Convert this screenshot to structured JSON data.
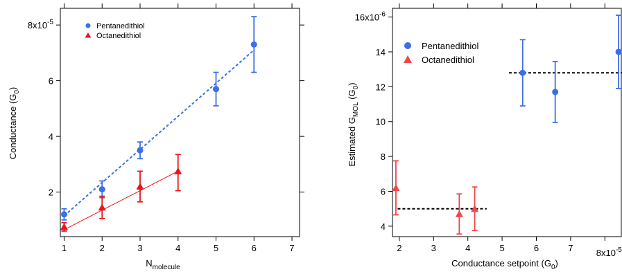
{
  "chart_data": [
    {
      "type": "scatter",
      "xlabel": "N",
      "xlabel_sub": "molecule",
      "ylabel": "Conductance (G",
      "ylabel_sub": "0",
      "ylabel_end": ")",
      "xlim": [
        0.9,
        7.2
      ],
      "ylim": [
        0.4,
        8.6
      ],
      "x_ticks": [
        "1",
        "2",
        "3",
        "4",
        "5",
        "6",
        "7"
      ],
      "y_ticks": [
        "2",
        "4",
        "6",
        "8x10"
      ],
      "y_exponent": "-5",
      "legend": [
        {
          "label": "Pentanedithiol",
          "color": "#3b6fe8",
          "marker": "circle"
        },
        {
          "label": "Octanedithiol",
          "color": "#e8151b",
          "marker": "triangle"
        }
      ],
      "series": [
        {
          "name": "Pentanedithiol",
          "color": "#3b6fe8",
          "marker": "circle",
          "points": [
            {
              "x": 1,
              "y": 1.2,
              "lo": 1.0,
              "hi": 1.4
            },
            {
              "x": 2,
              "y": 2.1,
              "lo": 1.8,
              "hi": 2.4
            },
            {
              "x": 3,
              "y": 3.5,
              "lo": 3.2,
              "hi": 3.8
            },
            {
              "x": 5,
              "y": 5.7,
              "lo": 5.1,
              "hi": 6.3
            },
            {
              "x": 6,
              "y": 7.3,
              "lo": 6.3,
              "hi": 8.3
            }
          ],
          "fit": {
            "x": [
              1,
              6
            ],
            "y": [
              1.15,
              7.1
            ],
            "style": "dashed"
          }
        },
        {
          "name": "Octanedithiol",
          "color": "#e8151b",
          "marker": "triangle",
          "points": [
            {
              "x": 1,
              "y": 0.75,
              "lo": 0.6,
              "hi": 0.9
            },
            {
              "x": 2,
              "y": 1.45,
              "lo": 1.05,
              "hi": 1.85
            },
            {
              "x": 3,
              "y": 2.2,
              "lo": 1.65,
              "hi": 2.75
            },
            {
              "x": 4,
              "y": 2.75,
              "lo": 2.05,
              "hi": 3.35
            }
          ],
          "fit": {
            "x": [
              1,
              4
            ],
            "y": [
              0.65,
              2.75
            ],
            "style": "solid"
          }
        }
      ]
    },
    {
      "type": "scatter",
      "xlabel": "Conductance setpoint (G",
      "xlabel_sub": "0",
      "xlabel_end": ")",
      "ylabel": "Estimated G",
      "ylabel_sub": "MOL",
      "ylabel_mid": " (G",
      "ylabel_sub2": "0",
      "ylabel_end": ")",
      "xlim": [
        1.8,
        8.5
      ],
      "ylim": [
        3.4,
        16.5
      ],
      "x_ticks": [
        "2",
        "3",
        "4",
        "5",
        "6",
        "7",
        "8x10"
      ],
      "x_exponent": "-5",
      "y_ticks": [
        "4",
        "6",
        "8",
        "10",
        "12",
        "14",
        "16x10"
      ],
      "y_exponent": "-6",
      "legend": [
        {
          "label": "Pentanedithiol",
          "color": "#3b6fe8",
          "marker": "circle"
        },
        {
          "label": "Octanedithiol",
          "color": "#f0464a",
          "marker": "triangle"
        }
      ],
      "series": [
        {
          "name": "Pentanedithiol",
          "color": "#3b6fe8",
          "marker": "circle",
          "points": [
            {
              "x": 5.6,
              "y": 12.8,
              "lo": 10.9,
              "hi": 14.7
            },
            {
              "x": 6.55,
              "y": 11.7,
              "lo": 9.95,
              "hi": 13.45
            },
            {
              "x": 8.4,
              "y": 14.0,
              "lo": 11.9,
              "hi": 16.1
            }
          ],
          "mean": {
            "y": 12.8,
            "x": [
              5.2,
              8.5
            ]
          }
        },
        {
          "name": "Octanedithiol",
          "color": "#f0464a",
          "marker": "triangle",
          "points": [
            {
              "x": 1.9,
              "y": 6.2,
              "lo": 4.65,
              "hi": 7.75
            },
            {
              "x": 3.75,
              "y": 4.7,
              "lo": 3.55,
              "hi": 5.85
            },
            {
              "x": 4.2,
              "y": 5.0,
              "lo": 3.75,
              "hi": 6.25
            }
          ],
          "mean": {
            "y": 5.0,
            "x": [
              1.95,
              4.55
            ]
          }
        }
      ]
    }
  ]
}
